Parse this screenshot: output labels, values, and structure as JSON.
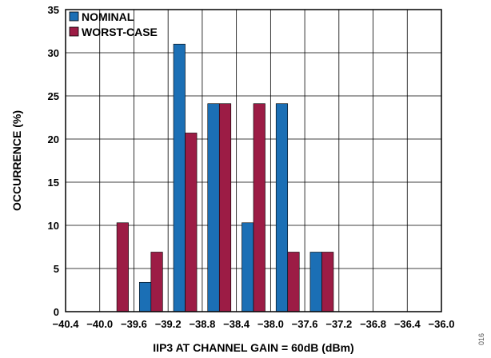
{
  "figure_id": "016",
  "colors": {
    "nominal": "#1b6fb5",
    "worst_case": "#9c1c45",
    "grid": "#000000",
    "axis": "#000000"
  },
  "chart_data": {
    "type": "bar",
    "title": "",
    "xlabel": "IIP3 AT CHANNEL GAIN = 60dB (dBm)",
    "ylabel": "OCCURRENCE (%)",
    "xlim": [
      -40.4,
      -36.0
    ],
    "ylim": [
      0,
      35
    ],
    "x_ticks": [
      -40.4,
      -40.0,
      -39.6,
      -39.2,
      -38.8,
      -38.4,
      -38.0,
      -37.6,
      -37.2,
      -36.8,
      -36.4,
      -36.0
    ],
    "x_tick_labels": [
      "−40.4",
      "−40.0",
      "−39.6",
      "−39.2",
      "−38.8",
      "−38.4",
      "−38.0",
      "−37.6",
      "−37.2",
      "−36.8",
      "−36.4",
      "−36.0"
    ],
    "y_ticks": [
      0,
      5,
      10,
      15,
      20,
      25,
      30,
      35
    ],
    "y_tick_labels": [
      "0",
      "5",
      "10",
      "15",
      "20",
      "25",
      "30",
      "35"
    ],
    "grid": true,
    "legend_position": "top-left",
    "bin_width": 0.4,
    "bin_starts": [
      -40.4,
      -40.0,
      -39.6,
      -39.2,
      -38.8,
      -38.4,
      -38.0,
      -37.6,
      -37.2,
      -36.8,
      -36.4
    ],
    "series": [
      {
        "name": "NOMINAL",
        "color_key": "nominal",
        "values": [
          0,
          0,
          3.4,
          31.0,
          24.1,
          10.3,
          24.1,
          6.9,
          0,
          0,
          0
        ]
      },
      {
        "name": "WORST-CASE",
        "color_key": "worst_case",
        "values": [
          0,
          10.3,
          6.9,
          20.7,
          24.1,
          24.1,
          6.9,
          6.9,
          0,
          0,
          0
        ]
      }
    ]
  }
}
